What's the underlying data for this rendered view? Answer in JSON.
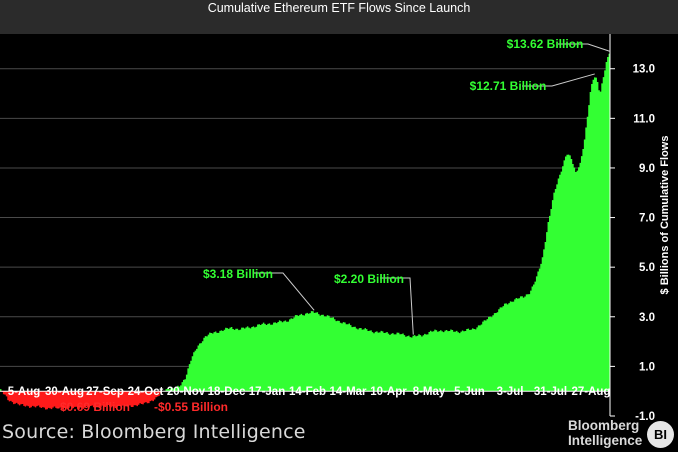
{
  "chart_data": {
    "type": "area",
    "title": "Cumulative Ethereum ETF Flows Since Launch",
    "xlabel": "",
    "ylabel": "$ Billions of Cumulative Flows",
    "x_tick_labels": [
      "5-Aug",
      "30-Aug",
      "27-Sep",
      "24-Oct",
      "20-Nov",
      "18-Dec",
      "17-Jan",
      "14-Feb",
      "14-Mar",
      "10-Apr",
      "8-May",
      "5-Jun",
      "3-Jul",
      "31-Jul",
      "27-Aug"
    ],
    "y_tick_labels": [
      "13.0",
      "11.0",
      "9.0",
      "7.0",
      "5.0",
      "3.0",
      "1.0",
      "-1.0"
    ],
    "ylim": [
      -1.0,
      14.4
    ],
    "grid": "horizontal",
    "colors": {
      "positive": "#33ff33",
      "negative": "#ff1a1a"
    },
    "series": [
      {
        "x": [
          "2024-07-23",
          "2024-07-29",
          "2024-08-05",
          "2024-08-14",
          "2024-08-25",
          "2024-09-05",
          "2024-09-15",
          "2024-09-25",
          "2024-10-05",
          "2024-10-15",
          "2024-10-24",
          "2024-11-03",
          "2024-11-08",
          "2024-11-12",
          "2024-11-14",
          "2024-11-18",
          "2024-11-22",
          "2024-11-26",
          "2024-11-30",
          "2024-12-05",
          "2024-12-10",
          "2024-12-16",
          "2024-12-22",
          "2024-12-28",
          "2025-01-05",
          "2025-01-12",
          "2025-01-20",
          "2025-01-28",
          "2025-02-04",
          "2025-02-10",
          "2025-02-14",
          "2025-02-22",
          "2025-03-02",
          "2025-03-10",
          "2025-03-18",
          "2025-03-26",
          "2025-04-03",
          "2025-04-12",
          "2025-04-20",
          "2025-04-26",
          "2025-05-02",
          "2025-05-10",
          "2025-05-20",
          "2025-05-30",
          "2025-06-06",
          "2025-06-14",
          "2025-06-20",
          "2025-06-26",
          "2025-07-02",
          "2025-07-06",
          "2025-07-10",
          "2025-07-14",
          "2025-07-18",
          "2025-07-22",
          "2025-07-25",
          "2025-07-28",
          "2025-07-30",
          "2025-08-02",
          "2025-08-05",
          "2025-08-08",
          "2025-08-11",
          "2025-08-13",
          "2025-08-15",
          "2025-08-17",
          "2025-08-19",
          "2025-08-21",
          "2025-08-23",
          "2025-08-25",
          "2025-08-27"
        ],
        "y": [
          0.1,
          -0.35,
          -0.56,
          -0.62,
          -0.69,
          -0.68,
          -0.66,
          -0.62,
          -0.62,
          -0.6,
          -0.55,
          -0.3,
          0.05,
          0.15,
          0.08,
          0.18,
          0.55,
          1.3,
          1.8,
          2.2,
          2.35,
          2.45,
          2.55,
          2.5,
          2.6,
          2.7,
          2.75,
          2.85,
          3.05,
          3.15,
          3.18,
          3.05,
          2.85,
          2.65,
          2.5,
          2.4,
          2.35,
          2.3,
          2.2,
          2.25,
          2.4,
          2.45,
          2.4,
          2.5,
          2.8,
          3.2,
          3.5,
          3.7,
          3.8,
          4.0,
          4.5,
          5.3,
          6.8,
          8.0,
          8.6,
          9.2,
          9.6,
          9.4,
          8.8,
          9.2,
          10.2,
          11.2,
          12.2,
          12.71,
          12.6,
          12.0,
          12.6,
          13.2,
          13.62
        ]
      }
    ],
    "annotations": [
      {
        "text": "$13.62 Billion",
        "x": "2025-08-27",
        "y": 13.62,
        "color": "#33ff33"
      },
      {
        "text": "$12.71 Billion",
        "x": "2025-08-17",
        "y": 12.71,
        "color": "#33ff33"
      },
      {
        "text": "$3.18 Billion",
        "x": "2025-02-14",
        "y": 3.18,
        "color": "#33ff33"
      },
      {
        "text": "$2.20 Billion",
        "x": "2025-04-20",
        "y": 2.2,
        "color": "#33ff33"
      },
      {
        "text": "-$0.69 Billion",
        "x": "2024-08-25",
        "y": -0.69,
        "color": "#ff2a2a"
      },
      {
        "text": "-$0.55 Billion",
        "x": "2024-10-24",
        "y": -0.55,
        "color": "#ff2a2a"
      }
    ]
  },
  "footer": {
    "source": "Source: Bloomberg Intelligence",
    "brand_line1": "Bloomberg",
    "brand_line2": "Intelligence",
    "logo": "BI"
  }
}
